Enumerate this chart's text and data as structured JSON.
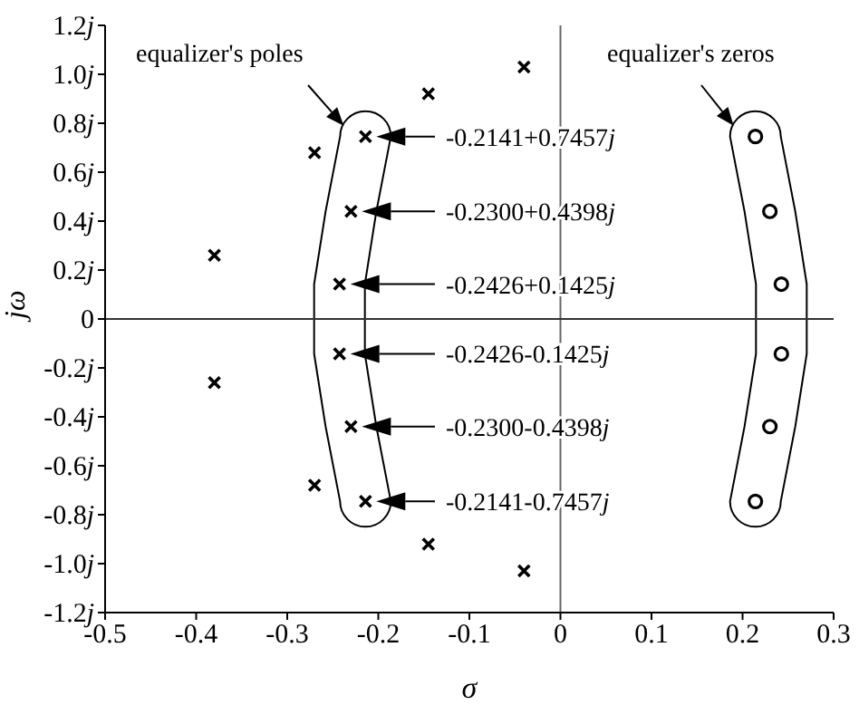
{
  "chart_data": {
    "type": "scatter",
    "xlabel": "σ",
    "ylabel": "jω",
    "xlim": [
      -0.5,
      0.3
    ],
    "xticks": [
      -0.5,
      -0.4,
      -0.3,
      -0.2,
      -0.1,
      0,
      0.1,
      0.2,
      0.3
    ],
    "ylim": [
      -1.2,
      1.2
    ],
    "yticks": [
      {
        "value": -1.2,
        "label": "-1.2j"
      },
      {
        "value": -1.0,
        "label": "-1.0j"
      },
      {
        "value": -0.8,
        "label": "-0.8j"
      },
      {
        "value": -0.6,
        "label": "-0.6j"
      },
      {
        "value": -0.4,
        "label": "-0.4j"
      },
      {
        "value": -0.2,
        "label": "-0.2j"
      },
      0,
      {
        "value": 0.2,
        "label": "0.2j"
      },
      {
        "value": 0.4,
        "label": "0.4j"
      },
      {
        "value": 0.6,
        "label": "0.6j"
      },
      {
        "value": 0.8,
        "label": "0.8j"
      },
      {
        "value": 1.0,
        "label": "1.0j"
      },
      {
        "value": 1.2,
        "label": "1.2j"
      }
    ],
    "grid": false,
    "legend": false,
    "series": [
      {
        "type": "scatter",
        "marker": "cross",
        "color": "#000000",
        "x": [
          -0.38,
          -0.38,
          -0.27,
          -0.27,
          -0.145,
          -0.145,
          -0.04,
          -0.04
        ],
        "values": [
          0.26,
          -0.26,
          0.68,
          -0.68,
          0.92,
          -0.92,
          1.03,
          -1.03
        ]
      },
      {
        "type": "scatter",
        "marker": "cross",
        "color": "#000000",
        "x": [
          -0.2141,
          -0.23,
          -0.2426,
          -0.2426,
          -0.23,
          -0.2141
        ],
        "values": [
          0.7457,
          0.4398,
          0.1425,
          -0.1425,
          -0.4398,
          -0.7457
        ]
      },
      {
        "type": "scatter",
        "marker": "circle",
        "color": "#000000",
        "x": [
          0.2141,
          0.23,
          0.2426,
          0.2426,
          0.23,
          0.2141
        ],
        "values": [
          0.7457,
          0.4398,
          0.1425,
          -0.1425,
          -0.4398,
          -0.7457
        ]
      }
    ],
    "ref_lines": [
      {
        "axis": "x",
        "value": 0,
        "color": "#666666"
      },
      {
        "axis": "y",
        "value": 0,
        "color": "#333333"
      }
    ],
    "annotations": [
      "equalizer's poles",
      "equalizer's zeros",
      "-0.2141+0.7457j",
      "-0.2300+0.4398j",
      "-0.2426+0.1425j",
      "-0.2426-0.1425j",
      "-0.2300-0.4398j",
      "-0.2141-0.7457j"
    ]
  }
}
